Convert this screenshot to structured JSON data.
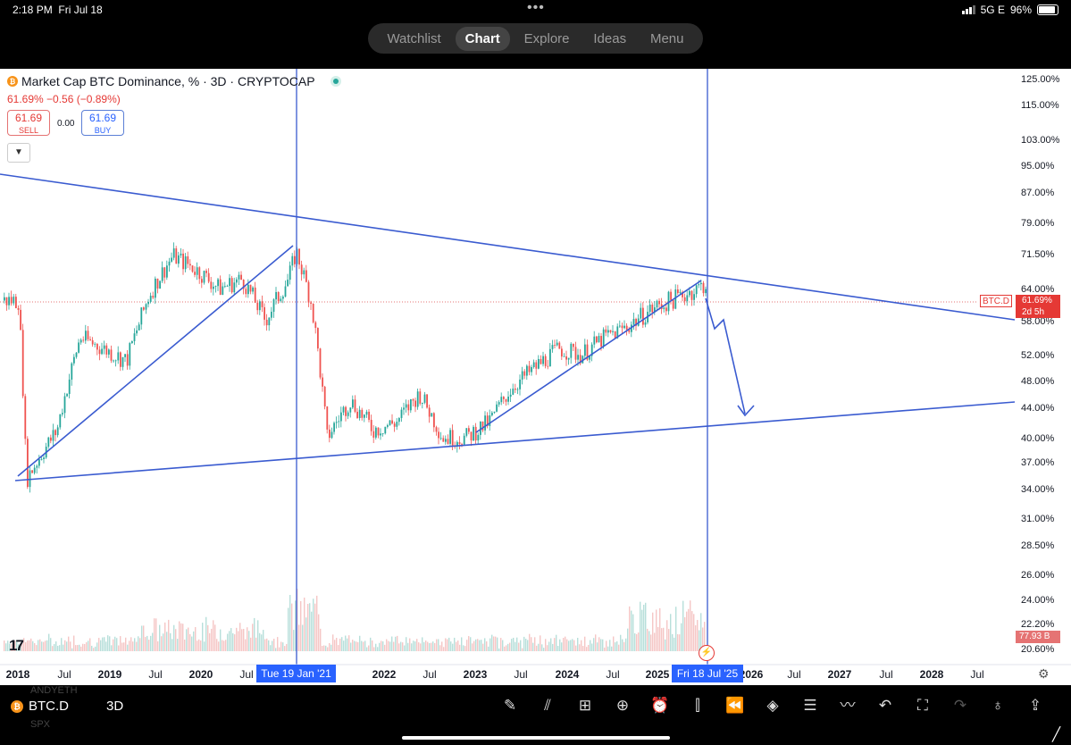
{
  "status_bar": {
    "time": "2:18 PM",
    "date": "Fri Jul 18",
    "network": "5G E",
    "battery": "96%"
  },
  "top_nav": {
    "tabs": [
      "Watchlist",
      "Chart",
      "Explore",
      "Ideas",
      "Menu"
    ],
    "active": "Chart"
  },
  "chart_header": {
    "title": "Market Cap BTC Dominance, % · 3D · CRYPTOCAP",
    "change": "61.69%  −0.56 (−0.89%)",
    "sell_price": "61.69",
    "sell_label": "SELL",
    "spread": "0.00",
    "buy_price": "61.69",
    "buy_label": "BUY",
    "collapse_icon": "chevron-down-icon"
  },
  "price_scale": {
    "symbol_tag": "BTC.D",
    "last_price": "61.69%",
    "countdown": "2d 5h",
    "volume_label": "77.93 B"
  },
  "time_axis": {
    "highlight_left": "Tue 19 Jan '21",
    "highlight_right": "Fri 18 Jul '25"
  },
  "bottom_bar": {
    "symbol": "BTC.D",
    "resolution": "3D",
    "ghost_top": "ANDYETH",
    "ghost_bottom": "SPX",
    "tools": [
      "draw-icon",
      "indicators-icon",
      "layout-grid-icon",
      "add-icon",
      "alert-clock-icon",
      "chart-type-icon",
      "replay-icon",
      "layers-icon",
      "settings-sliders-icon",
      "trend-icon",
      "undo-icon",
      "fullscreen-icon",
      "redo-icon",
      "idea-icon",
      "share-icon"
    ]
  },
  "colors": {
    "up": "#26a69a",
    "down": "#ef5350",
    "drawing": "#3a5bd0",
    "accent": "#2962ff"
  },
  "chart_data": {
    "type": "candlestick",
    "title": "Market Cap BTC Dominance, % · 3D · CRYPTOCAP",
    "y_scale": "log",
    "y_ticks": [
      "125.00%",
      "115.00%",
      "103.00%",
      "95.00%",
      "87.00%",
      "79.00%",
      "71.50%",
      "64.00%",
      "58.00%",
      "52.00%",
      "48.00%",
      "44.00%",
      "40.00%",
      "37.00%",
      "34.00%",
      "31.00%",
      "28.50%",
      "26.00%",
      "24.00%",
      "22.20%",
      "20.60%"
    ],
    "x_ticks": [
      "2018",
      "Jul",
      "2019",
      "Jul",
      "2020",
      "Jul",
      "2022",
      "Jul",
      "2023",
      "Jul",
      "2024",
      "Jul",
      "2025",
      "2026",
      "Jul",
      "2027",
      "Jul",
      "2028",
      "Jul"
    ],
    "approx_series": [
      {
        "date": "2018-01",
        "value": 62
      },
      {
        "date": "2018-02",
        "value": 35
      },
      {
        "date": "2018-06",
        "value": 41
      },
      {
        "date": "2018-09",
        "value": 55
      },
      {
        "date": "2018-12",
        "value": 53
      },
      {
        "date": "2019-03",
        "value": 51
      },
      {
        "date": "2019-06",
        "value": 63
      },
      {
        "date": "2019-09",
        "value": 71
      },
      {
        "date": "2019-12",
        "value": 68
      },
      {
        "date": "2020-03",
        "value": 64
      },
      {
        "date": "2020-06",
        "value": 66
      },
      {
        "date": "2020-09",
        "value": 58
      },
      {
        "date": "2020-12",
        "value": 66
      },
      {
        "date": "2021-01",
        "value": 72
      },
      {
        "date": "2021-03",
        "value": 61
      },
      {
        "date": "2021-05",
        "value": 40
      },
      {
        "date": "2021-08",
        "value": 45
      },
      {
        "date": "2021-11",
        "value": 41
      },
      {
        "date": "2022-02",
        "value": 42
      },
      {
        "date": "2022-05",
        "value": 46
      },
      {
        "date": "2022-08",
        "value": 40
      },
      {
        "date": "2022-11",
        "value": 40
      },
      {
        "date": "2023-02",
        "value": 42
      },
      {
        "date": "2023-05",
        "value": 47
      },
      {
        "date": "2023-08",
        "value": 50
      },
      {
        "date": "2023-11",
        "value": 53
      },
      {
        "date": "2024-02",
        "value": 52
      },
      {
        "date": "2024-05",
        "value": 55
      },
      {
        "date": "2024-08",
        "value": 57
      },
      {
        "date": "2024-11",
        "value": 60
      },
      {
        "date": "2025-02",
        "value": 62
      },
      {
        "date": "2025-05",
        "value": 64
      },
      {
        "date": "2025-06",
        "value": 65
      },
      {
        "date": "2025-07",
        "value": 61.69
      }
    ],
    "annotations": [
      {
        "type": "vertical-line",
        "date": "2021-01-19"
      },
      {
        "type": "vertical-line",
        "date": "2025-07-18"
      },
      {
        "type": "trendline",
        "label": "upper descending resistance"
      },
      {
        "type": "trendline",
        "label": "lower ascending support"
      },
      {
        "type": "arrow",
        "label": "projected drop to ~44%"
      }
    ]
  }
}
